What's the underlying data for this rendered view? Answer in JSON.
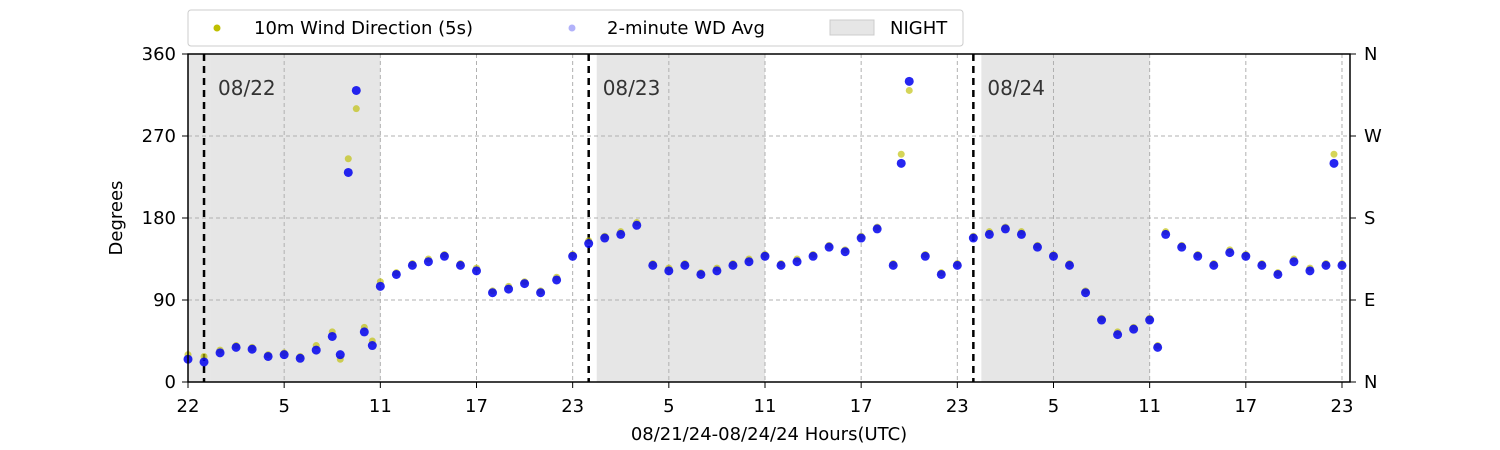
{
  "chart_data": {
    "type": "scatter",
    "title": "",
    "xlabel": "08/21/24-08/24/24  Hours(UTC)",
    "ylabel": "Degrees",
    "x_range_hours": [
      0,
      72.5
    ],
    "x_tick_labels": [
      "22",
      "5",
      "11",
      "17",
      "23",
      "5",
      "11",
      "17",
      "23",
      "5",
      "11",
      "17",
      "23"
    ],
    "x_tick_hours": [
      0,
      6,
      12,
      18,
      24,
      30,
      36,
      42,
      48,
      54,
      60,
      66,
      72
    ],
    "ylim": [
      0,
      360
    ],
    "y_ticks": [
      0,
      90,
      180,
      270,
      360
    ],
    "y2_tick_labels": [
      "N",
      "E",
      "S",
      "W",
      "N"
    ],
    "grid": true,
    "legend_position": "top",
    "day_lines": [
      {
        "hour": 1,
        "label": "08/22"
      },
      {
        "hour": 25,
        "label": "08/23"
      },
      {
        "hour": 49,
        "label": "08/24"
      }
    ],
    "night_spans": [
      {
        "start": 0,
        "end": 1.4
      },
      {
        "start": 1.4,
        "end": 12
      },
      {
        "start": 25.5,
        "end": 36
      },
      {
        "start": 49.5,
        "end": 60
      }
    ],
    "series": [
      {
        "name": "10m Wind Direction (5s)",
        "color": "#bfbf00",
        "marker": "dot",
        "x": [
          0,
          1,
          2,
          3,
          4,
          5,
          6,
          7,
          8,
          9,
          9.5,
          10,
          10.5,
          11,
          11.5,
          12,
          13,
          14,
          15,
          16,
          17,
          18,
          19,
          20,
          21,
          22,
          23,
          24,
          25,
          26,
          27,
          28,
          29,
          30,
          31,
          32,
          33,
          34,
          35,
          36,
          37,
          38,
          39,
          40,
          41,
          42,
          43,
          44,
          44.5,
          45,
          46,
          47,
          48,
          49,
          50,
          51,
          52,
          53,
          54,
          55,
          56,
          57,
          58,
          59,
          60,
          60.5,
          61,
          62,
          63,
          64,
          65,
          66,
          67,
          68,
          69,
          70,
          71,
          71.5,
          72
        ],
        "y": [
          30,
          28,
          35,
          40,
          38,
          30,
          32,
          28,
          40,
          55,
          25,
          245,
          300,
          60,
          45,
          110,
          120,
          130,
          135,
          140,
          130,
          125,
          100,
          105,
          110,
          100,
          115,
          140,
          155,
          160,
          165,
          175,
          130,
          125,
          130,
          120,
          125,
          130,
          135,
          140,
          130,
          135,
          140,
          150,
          145,
          160,
          170,
          130,
          250,
          320,
          140,
          120,
          130,
          160,
          165,
          170,
          165,
          150,
          140,
          130,
          100,
          70,
          55,
          60,
          70,
          40,
          165,
          150,
          140,
          130,
          145,
          140,
          130,
          120,
          135,
          125,
          130,
          250,
          130
        ]
      },
      {
        "name": "2-minute WD Avg",
        "color": "#0000ee",
        "marker": "dot",
        "x": [
          0,
          1,
          2,
          3,
          4,
          5,
          6,
          7,
          8,
          9,
          9.5,
          10,
          10.5,
          11,
          11.5,
          12,
          13,
          14,
          15,
          16,
          17,
          18,
          19,
          20,
          21,
          22,
          23,
          24,
          25,
          26,
          27,
          28,
          29,
          30,
          31,
          32,
          33,
          34,
          35,
          36,
          37,
          38,
          39,
          40,
          41,
          42,
          43,
          44,
          44.5,
          45,
          46,
          47,
          48,
          49,
          50,
          51,
          52,
          53,
          54,
          55,
          56,
          57,
          58,
          59,
          60,
          60.5,
          61,
          62,
          63,
          64,
          65,
          66,
          67,
          68,
          69,
          70,
          71,
          71.5,
          72
        ],
        "y": [
          25,
          22,
          32,
          38,
          36,
          28,
          30,
          26,
          35,
          50,
          30,
          230,
          320,
          55,
          40,
          105,
          118,
          128,
          132,
          138,
          128,
          122,
          98,
          102,
          108,
          98,
          112,
          138,
          152,
          158,
          162,
          172,
          128,
          122,
          128,
          118,
          122,
          128,
          132,
          138,
          128,
          132,
          138,
          148,
          143,
          158,
          168,
          128,
          240,
          330,
          138,
          118,
          128,
          158,
          162,
          168,
          162,
          148,
          138,
          128,
          98,
          68,
          52,
          58,
          68,
          38,
          162,
          148,
          138,
          128,
          142,
          138,
          128,
          118,
          132,
          122,
          128,
          240,
          128
        ]
      },
      {
        "name": "NIGHT",
        "color": "#e6e6e6",
        "marker": "band"
      }
    ]
  }
}
